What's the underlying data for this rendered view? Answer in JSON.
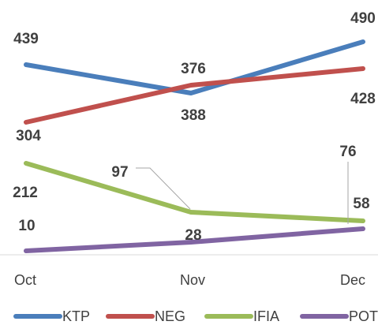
{
  "chart_data": {
    "type": "line",
    "categories": [
      "Oct",
      "Nov",
      "Dec"
    ],
    "series": [
      {
        "name": "KTP",
        "values": [
          439,
          388,
          490
        ],
        "color": "#4a7ebb",
        "labels": [
          "439",
          "388",
          "490"
        ]
      },
      {
        "name": "NEG",
        "values": [
          304,
          376,
          428
        ],
        "color": "#c0504d",
        "labels": [
          "304",
          "376",
          "428"
        ]
      },
      {
        "name": "IFIA",
        "values": [
          212,
          97,
          58
        ],
        "color": "#9bbb59",
        "labels": [
          "212",
          "97",
          "58"
        ]
      },
      {
        "name": "POT",
        "values": [
          10,
          28,
          76
        ],
        "color": "#8064a2",
        "labels": [
          "10",
          "28",
          "76"
        ]
      }
    ],
    "legend_position": "bottom",
    "grid": false
  }
}
